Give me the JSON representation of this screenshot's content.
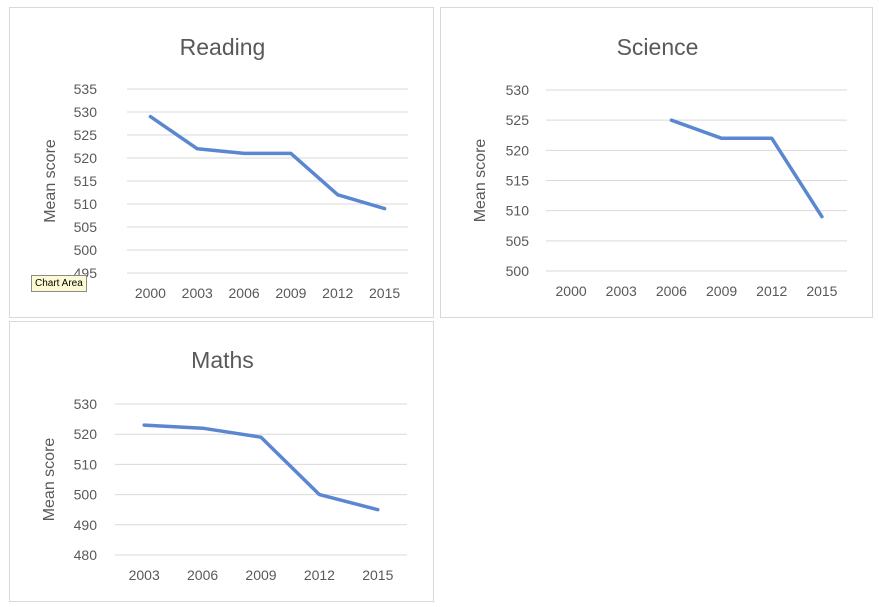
{
  "colors": {
    "series": "#5b87d1",
    "grid": "#d9d9d9",
    "text": "#595959"
  },
  "tooltip": {
    "label": "Chart Area"
  },
  "chart_data": [
    {
      "id": "reading",
      "type": "line",
      "title": "Reading",
      "xlabel": "",
      "ylabel": "Mean score",
      "categories": [
        "2000",
        "2003",
        "2006",
        "2009",
        "2012",
        "2015"
      ],
      "values": [
        529,
        522,
        521,
        521,
        512,
        509
      ],
      "yticks": [
        495,
        500,
        505,
        510,
        515,
        520,
        525,
        530,
        535
      ],
      "ylim": [
        495,
        535
      ],
      "grid": true
    },
    {
      "id": "science",
      "type": "line",
      "title": "Science",
      "xlabel": "",
      "ylabel": "Mean score",
      "categories": [
        "2000",
        "2003",
        "2006",
        "2009",
        "2012",
        "2015"
      ],
      "values": [
        null,
        null,
        525,
        522,
        522,
        509
      ],
      "yticks": [
        500,
        505,
        510,
        515,
        520,
        525,
        530
      ],
      "ylim": [
        500,
        530
      ],
      "grid": true
    },
    {
      "id": "maths",
      "type": "line",
      "title": "Maths",
      "xlabel": "",
      "ylabel": "Mean score",
      "categories": [
        "2003",
        "2006",
        "2009",
        "2012",
        "2015"
      ],
      "values": [
        523,
        522,
        519,
        500,
        495
      ],
      "yticks": [
        480,
        490,
        500,
        510,
        520,
        530
      ],
      "ylim": [
        480,
        530
      ],
      "grid": true
    }
  ]
}
